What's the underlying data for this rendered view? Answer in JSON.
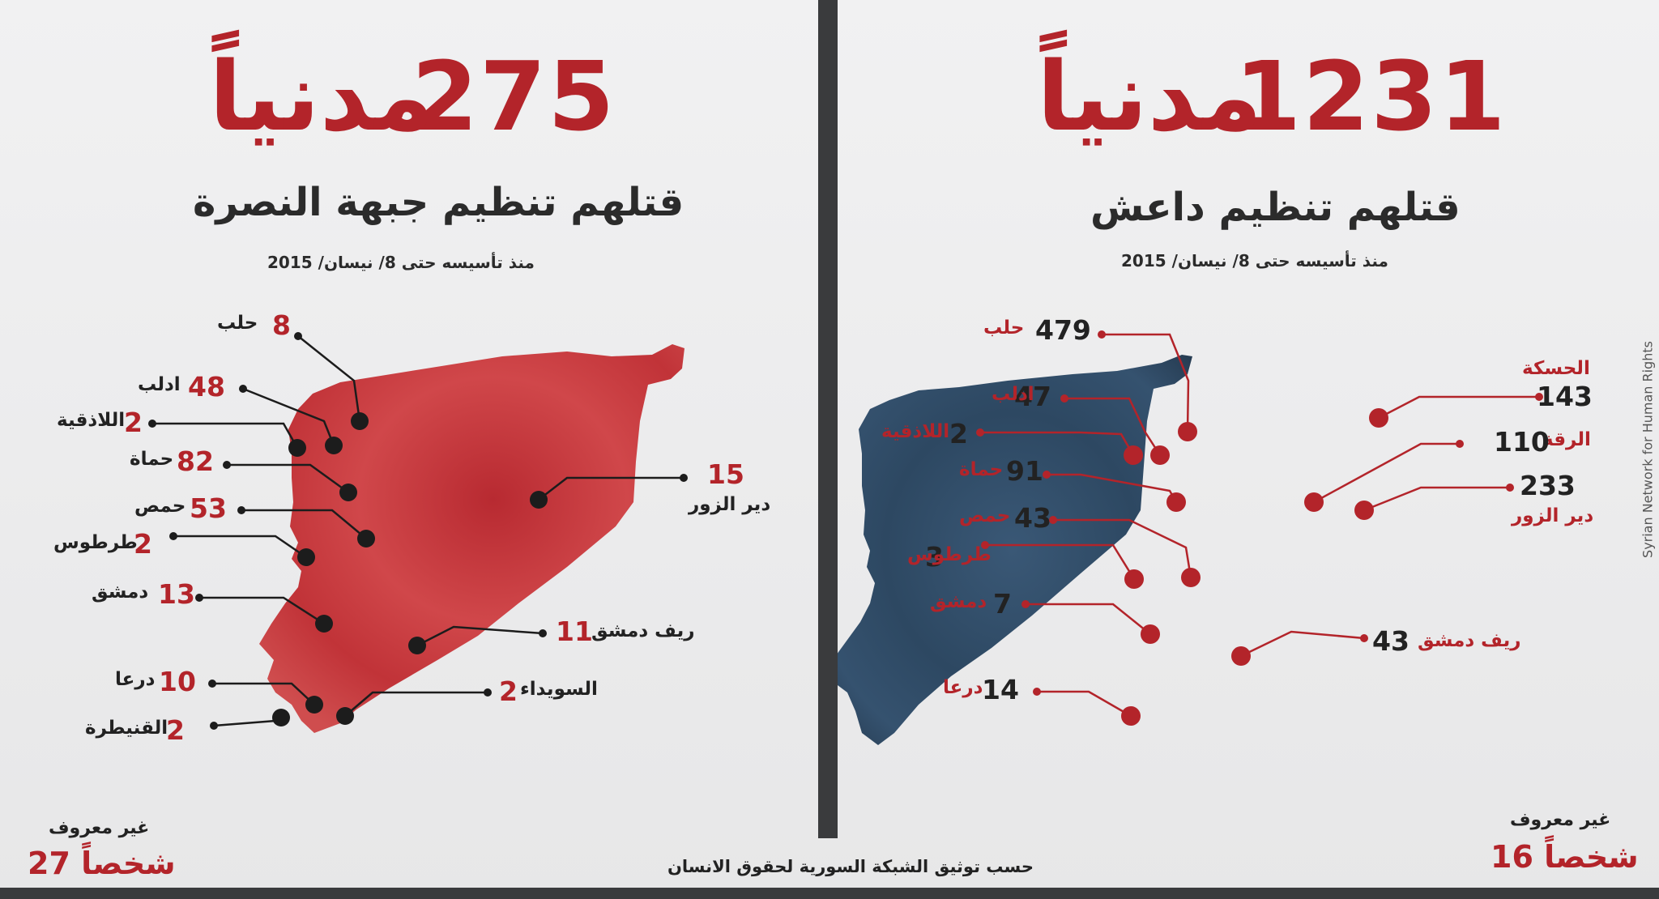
{
  "left": {
    "headline_number": "275",
    "headline_word": "مدنياً",
    "subtitle": "قتلهم تنظيم جبهة النصرة",
    "since": "منذ تأسيسه حتى 8/ نيسان/ 2015",
    "regions": [
      {
        "name": "حلب",
        "count": "8"
      },
      {
        "name": "ادلب",
        "count": "48"
      },
      {
        "name": "اللاذقية",
        "count": "2"
      },
      {
        "name": "حماة",
        "count": "82"
      },
      {
        "name": "حمص",
        "count": "53"
      },
      {
        "name": "طرطوس",
        "count": "2"
      },
      {
        "name": "دمشق",
        "count": "13"
      },
      {
        "name": "درعا",
        "count": "10"
      },
      {
        "name": "القنيطرة",
        "count": "2"
      },
      {
        "name": "دير الزور",
        "count": "15"
      },
      {
        "name": "ريف دمشق",
        "count": "11"
      },
      {
        "name": "السويداء",
        "count": "2"
      }
    ],
    "unknown_label": "غير معروف",
    "unknown_count": "27 شخصاً",
    "map_color": "#c3343a"
  },
  "right": {
    "headline_number": "1231",
    "headline_word": "مدنياً",
    "subtitle": "قتلهم تنظيم داعش",
    "since": "منذ تأسيسه حتى 8/ نيسان/ 2015",
    "regions": [
      {
        "name": "حلب",
        "count": "479"
      },
      {
        "name": "ادلب",
        "count": "47"
      },
      {
        "name": "اللاذقية",
        "count": "2"
      },
      {
        "name": "حماة",
        "count": "91"
      },
      {
        "name": "حمص",
        "count": "43"
      },
      {
        "name": "طرطوس",
        "count": "3"
      },
      {
        "name": "دمشق",
        "count": "7"
      },
      {
        "name": "درعا",
        "count": "14"
      },
      {
        "name": "الحسكة",
        "count": "143"
      },
      {
        "name": "الرقة",
        "count": "110"
      },
      {
        "name": "دير الزور",
        "count": "233"
      },
      {
        "name": "ريف دمشق",
        "count": "43"
      }
    ],
    "unknown_label": "غير معروف",
    "unknown_count": "16 شخصاً",
    "map_color": "#2f4a63"
  },
  "footer_credit": "حسب توثيق الشبكة السورية لحقوق الانسان",
  "vertical_credit": "Syrian Network for Human Rights",
  "colors": {
    "accent_red": "#b3242a",
    "dark": "#222222",
    "divider": "#3a3b3d"
  }
}
